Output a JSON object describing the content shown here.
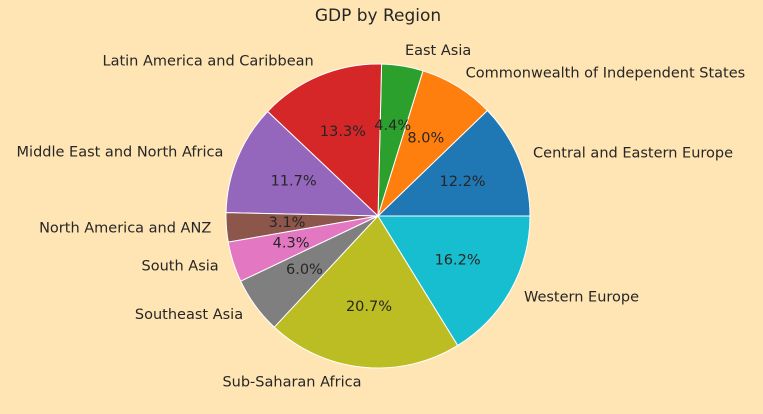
{
  "chart_data": {
    "type": "pie",
    "title": "GDP by Region",
    "start_angle_deg": 0,
    "direction": "counterclockwise",
    "slices": [
      {
        "label": "Central and Eastern Europe",
        "value": 12.2,
        "display": "12.2%",
        "color": "#1f77b4"
      },
      {
        "label": "Commonwealth of Independent States",
        "value": 8.0,
        "display": "8.0%",
        "color": "#ff7f0e"
      },
      {
        "label": "East Asia",
        "value": 4.4,
        "display": "4.4%",
        "color": "#2ca02c"
      },
      {
        "label": "Latin America and Caribbean",
        "value": 13.3,
        "display": "13.3%",
        "color": "#d62728"
      },
      {
        "label": "Middle East and North Africa",
        "value": 11.7,
        "display": "11.7%",
        "color": "#9467bd"
      },
      {
        "label": "North America and ANZ",
        "value": 3.1,
        "display": "3.1%",
        "color": "#8c564b"
      },
      {
        "label": "South Asia",
        "value": 4.3,
        "display": "4.3%",
        "color": "#e377c2"
      },
      {
        "label": "Southeast Asia",
        "value": 6.0,
        "display": "6.0%",
        "color": "#7f7f7f"
      },
      {
        "label": "Sub-Saharan Africa",
        "value": 20.7,
        "display": "20.7%",
        "color": "#bcbd22"
      },
      {
        "label": "Western Europe",
        "value": 16.2,
        "display": "16.2%",
        "color": "#17becf"
      }
    ]
  },
  "style": {
    "background": "#ffe5b4",
    "edge_color": "#ffffff",
    "text_color": "#262626"
  }
}
